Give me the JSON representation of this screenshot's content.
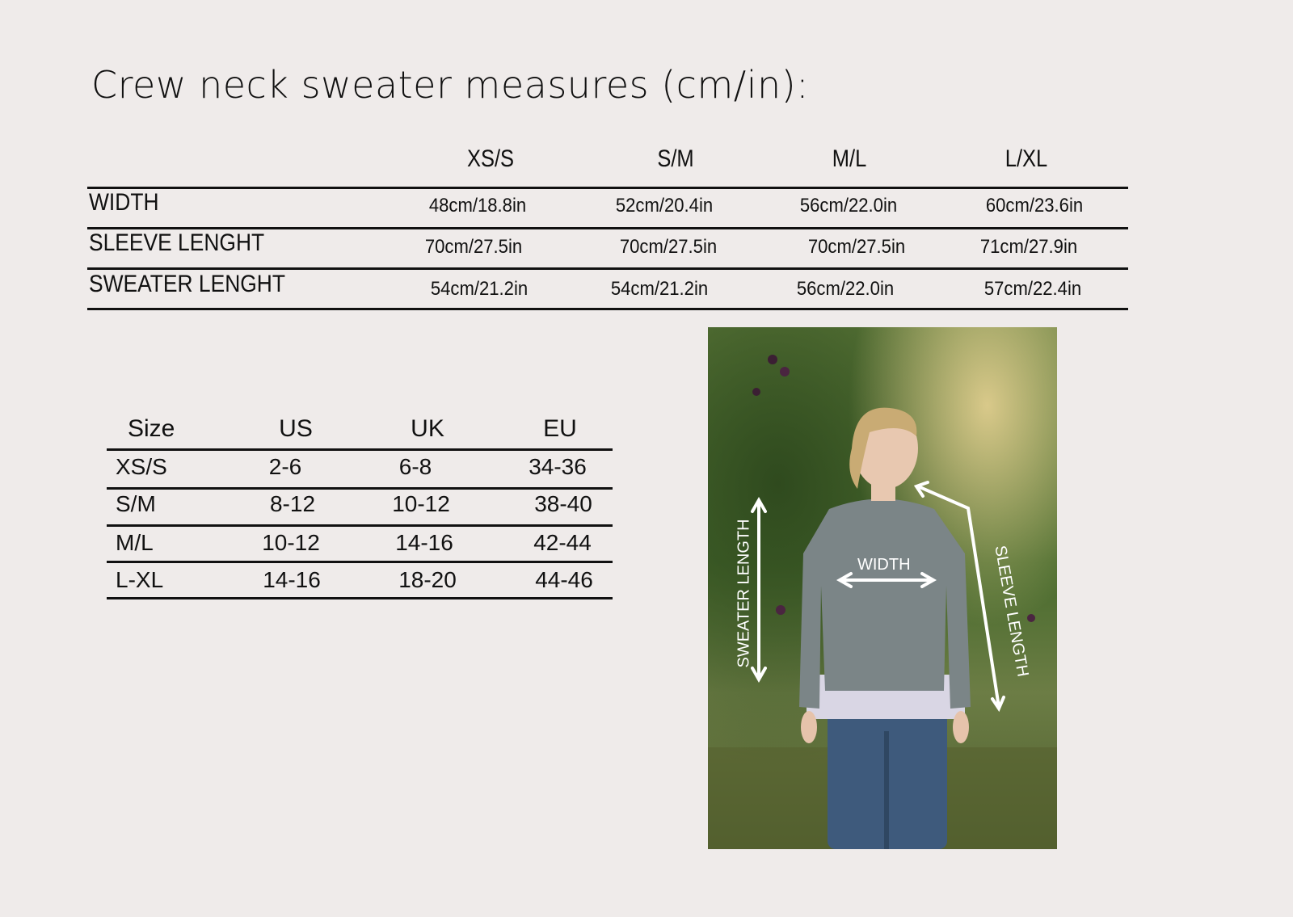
{
  "title": "Crew neck sweater measures (cm/in):",
  "measures": {
    "columns": [
      "XS/S",
      "S/M",
      "M/L",
      "L/XL"
    ],
    "rows": [
      {
        "label": "WIDTH",
        "values": [
          "48cm/18.8in",
          "52cm/20.4in",
          "56cm/22.0in",
          "60cm/23.6in"
        ]
      },
      {
        "label": "SLEEVE LENGHT",
        "values": [
          "70cm/27.5in",
          "70cm/27.5in",
          "70cm/27.5in",
          "71cm/27.9in"
        ]
      },
      {
        "label": "SWEATER LENGHT",
        "values": [
          "54cm/21.2in",
          "54cm/21.2in",
          "56cm/22.0in",
          "57cm/22.4in"
        ]
      }
    ]
  },
  "sizes": {
    "columns": [
      "Size",
      "US",
      "UK",
      "EU"
    ],
    "rows": [
      [
        "XS/S",
        "2-6",
        "6-8",
        "34-36"
      ],
      [
        "S/M",
        "8-12",
        "10-12",
        "38-40"
      ],
      [
        "M/L",
        "10-12",
        "14-16",
        "42-44"
      ],
      [
        "L-XL",
        "14-16",
        "18-20",
        "44-46"
      ]
    ]
  },
  "photo": {
    "width_label": "WIDTH",
    "sweater_length_label": "SWEATER LENGTH",
    "sleeve_length_label": "SLEEVE LENGTH"
  },
  "colors": {
    "background": "#efebea",
    "text": "#111111",
    "sweater": "#7b8587"
  }
}
